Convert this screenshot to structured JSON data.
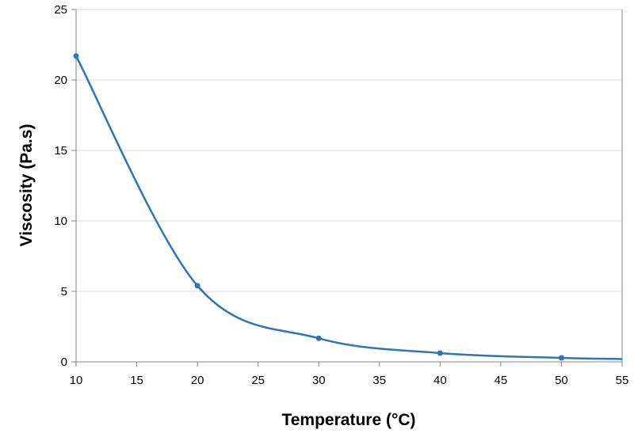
{
  "chart_data": {
    "type": "line",
    "title": "",
    "xlabel": "Temperature (°C)",
    "ylabel": "Viscosity (Pa.s)",
    "xlim": [
      10,
      55
    ],
    "ylim": [
      0,
      25
    ],
    "xticks": [
      10,
      15,
      20,
      25,
      30,
      35,
      40,
      45,
      50,
      55
    ],
    "yticks": [
      0,
      5,
      10,
      15,
      20,
      25
    ],
    "grid": "horizontal",
    "smooth": true,
    "series": [
      {
        "color": "#2e75b6",
        "x": [
          10,
          20,
          30,
          40,
          50
        ],
        "y": [
          21.7,
          5.4,
          1.67,
          0.62,
          0.28
        ],
        "line_end": [
          55,
          0.2
        ]
      }
    ]
  }
}
